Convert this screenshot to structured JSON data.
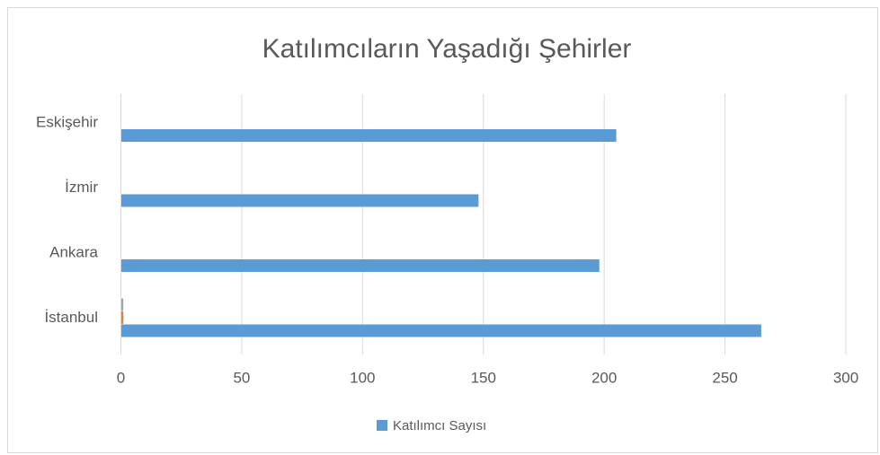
{
  "chart_data": {
    "type": "hbar",
    "title": "Katılımcıların Yaşadığı Şehirler",
    "categories": [
      "İstanbul",
      "Ankara",
      "İzmir",
      "Eskişehir"
    ],
    "series": [
      {
        "name": "Katılımcı Sayısı",
        "color": "#5b9bd5",
        "values": [
          265,
          198,
          148,
          205
        ]
      },
      {
        "color": "#ed7d31",
        "values": [
          1,
          null,
          null,
          null
        ]
      },
      {
        "color": "#a5a5a5",
        "values": [
          1,
          null,
          null,
          null
        ]
      }
    ],
    "xlim": [
      0,
      300
    ],
    "xticks": [
      0,
      50,
      100,
      150,
      200,
      250,
      300
    ],
    "grid": true,
    "legend": "bottom"
  }
}
